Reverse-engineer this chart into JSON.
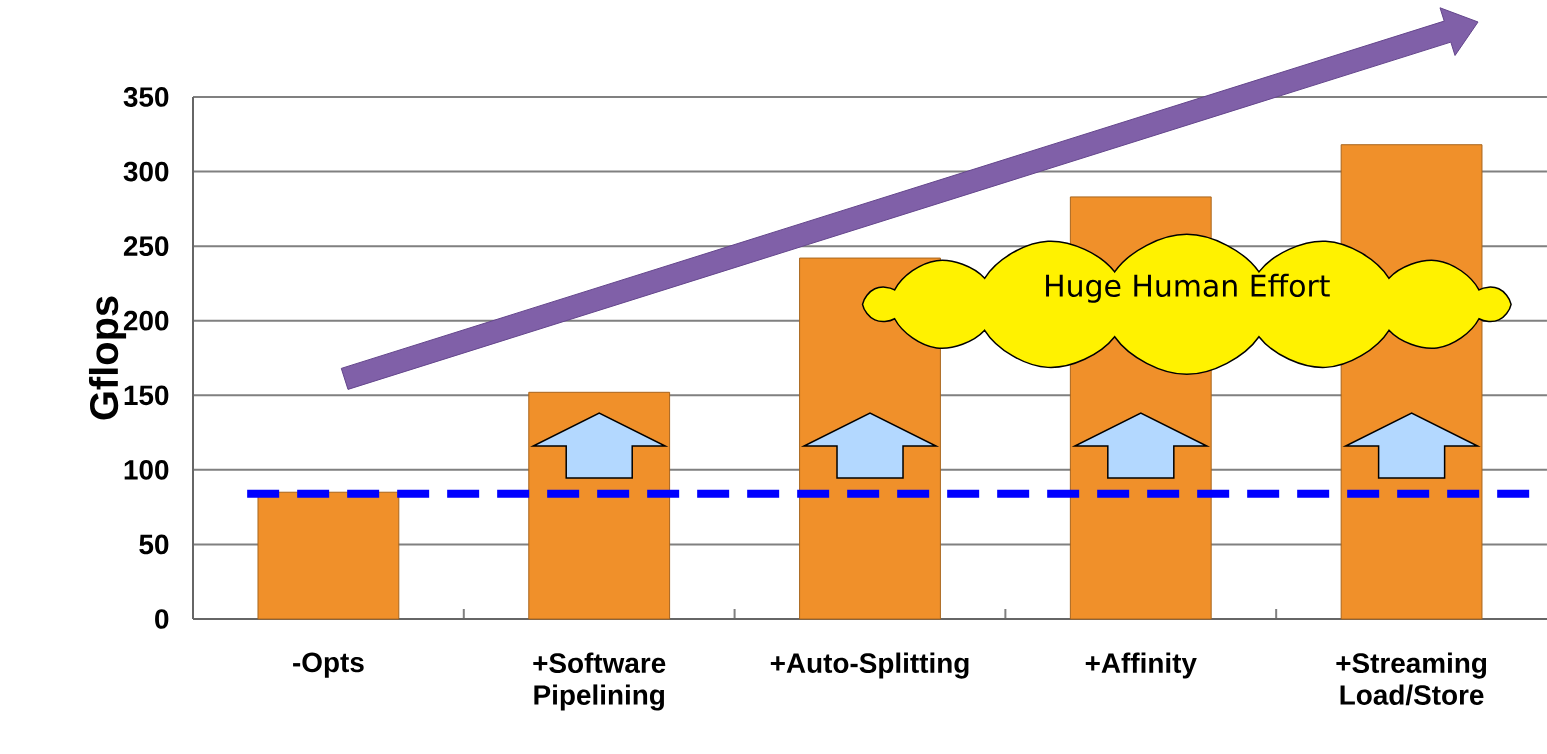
{
  "chart_data": {
    "type": "bar",
    "ylabel": "Gflops",
    "categories": [
      "-Opts",
      "+Software Pipelining",
      "+Auto-Splitting",
      "+Affinity",
      "+Streaming Load/Store"
    ],
    "values": [
      85,
      152,
      242,
      283,
      318
    ],
    "color": "#f0902a",
    "ylim": [
      0,
      350
    ],
    "yticks": [
      0,
      50,
      100,
      150,
      200,
      250,
      300,
      350
    ],
    "grid": "y",
    "ref_lines": [
      {
        "axis": "y",
        "value": 84,
        "color": "#0000ff",
        "line_style": "dashed"
      }
    ],
    "annotations": [
      "Huge Human Effort"
    ]
  }
}
